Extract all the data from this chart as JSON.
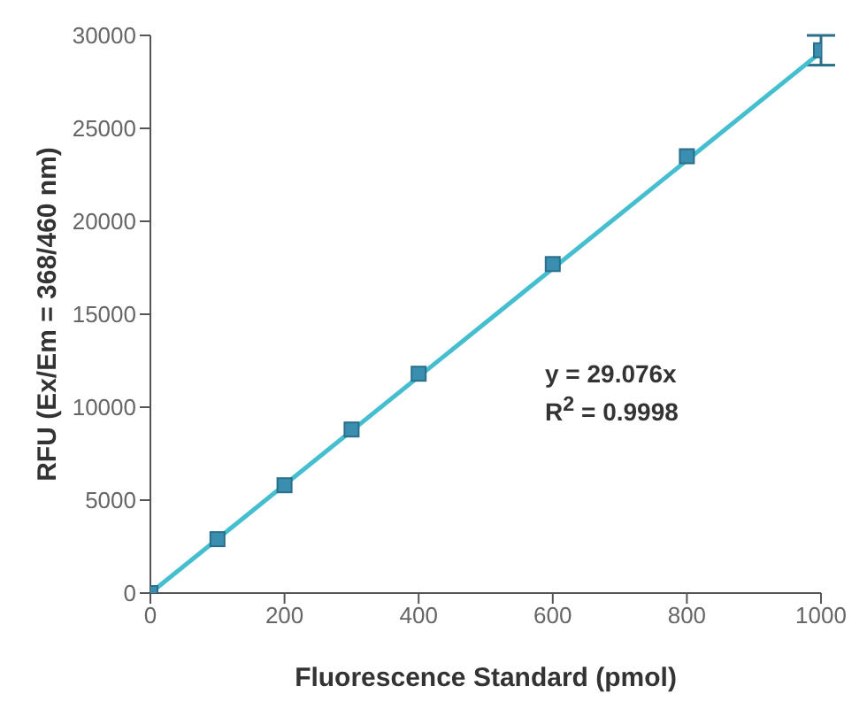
{
  "chart_data": {
    "type": "scatter",
    "xlabel": "Fluorescence  Standard (pmol)",
    "ylabel": "RFU (Ex/Em = 368/460 nm)",
    "xlim": [
      0,
      1000
    ],
    "xticks": [
      0,
      200,
      400,
      600,
      800,
      1000
    ],
    "ylim": [
      0,
      30000
    ],
    "yticks": [
      0,
      5000,
      10000,
      15000,
      20000,
      25000,
      30000
    ],
    "grid": false,
    "legend": false,
    "marker": "square",
    "series": [
      {
        "color": "#3a8fb0",
        "x": [
          0,
          100,
          200,
          300,
          400,
          600,
          800,
          1000
        ],
        "values": [
          0,
          2900,
          5800,
          8800,
          11800,
          17700,
          23500,
          29200
        ],
        "errors": [
          null,
          null,
          null,
          null,
          null,
          null,
          null,
          800
        ]
      },
      {
        "type": "line",
        "color": "#45bfd0",
        "x": [
          0,
          1000
        ],
        "values": [
          0,
          29100
        ],
        "marker": "none",
        "line_style": "solid"
      }
    ],
    "annotations": [
      "y = 29.076x",
      "R$^{2}$ = 0.9998"
    ]
  }
}
